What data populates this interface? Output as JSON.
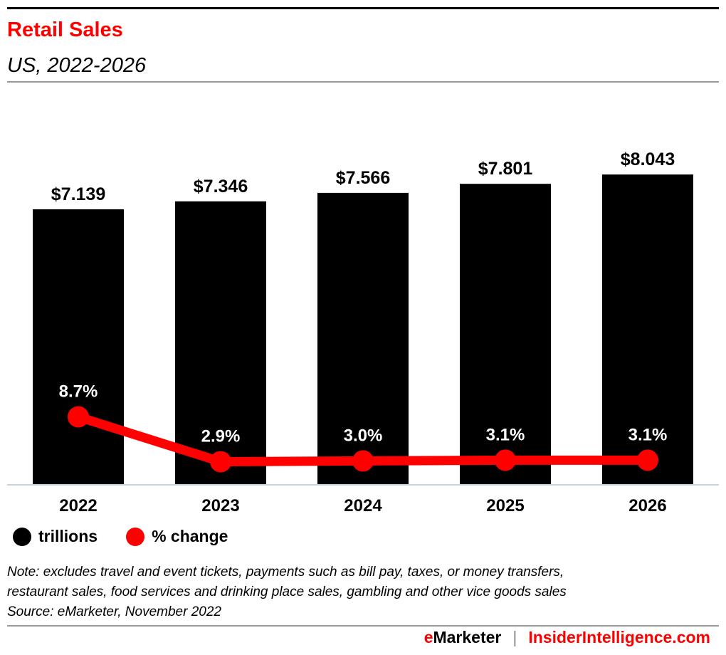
{
  "title": "Retail Sales",
  "subtitle": "US, 2022-2026",
  "chart_data": {
    "type": "bar",
    "categories": [
      "2022",
      "2023",
      "2024",
      "2025",
      "2026"
    ],
    "series": [
      {
        "name": "trillions",
        "type": "bar",
        "values": [
          7.139,
          7.346,
          7.566,
          7.801,
          8.043
        ],
        "labels": [
          "$7.139",
          "$7.346",
          "$7.566",
          "$7.801",
          "$8.043"
        ],
        "color": "#000000"
      },
      {
        "name": "% change",
        "type": "line",
        "values": [
          8.7,
          2.9,
          3.0,
          3.1,
          3.1
        ],
        "labels": [
          "8.7%",
          "2.9%",
          "3.0%",
          "3.1%",
          "3.1%"
        ],
        "color": "#ff0000"
      }
    ],
    "legend_position": "bottom-left",
    "grid": false
  },
  "note": "Note: excludes travel and event tickets, payments such as bill pay, taxes, or money transfers,",
  "note2": "restaurant sales, food services and drinking place sales, gambling and other vice goods sales",
  "source": "Source: eMarketer, November 2022",
  "footer": {
    "brand_e": "e",
    "brand_rest": "Marketer",
    "separator": "|",
    "site": "InsiderIntelligence.com"
  }
}
